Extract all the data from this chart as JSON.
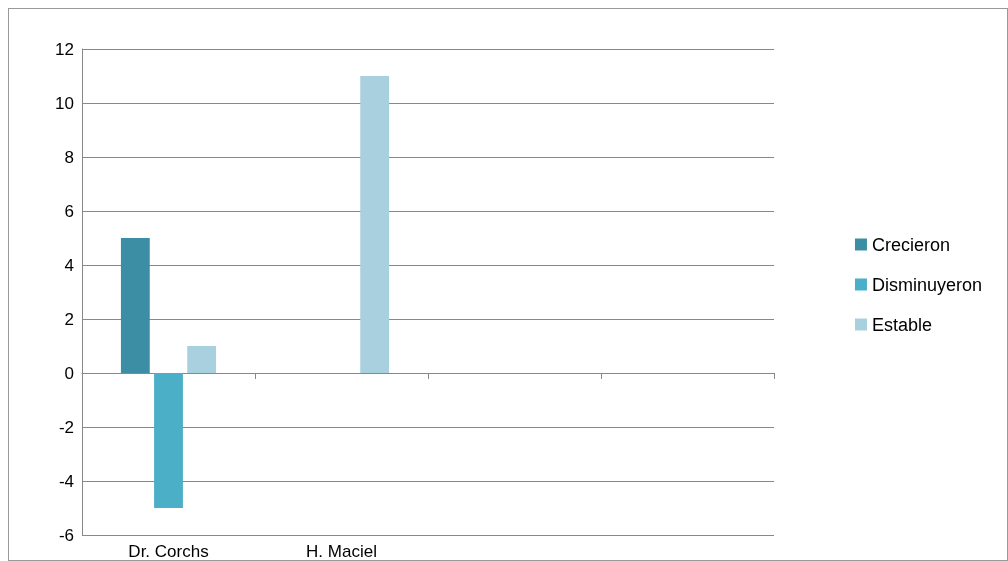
{
  "chart_data": {
    "type": "bar",
    "categories": [
      "Dr. Corchs",
      "H. Maciel",
      null,
      null
    ],
    "series": [
      {
        "name": "Crecieron",
        "color": "#3b8ea3",
        "values": [
          5,
          null,
          null,
          null
        ]
      },
      {
        "name": "Disminuyeron",
        "color": "#4bafc7",
        "values": [
          -5,
          null,
          null,
          null
        ]
      },
      {
        "name": "Estable",
        "color": "#a8d0de",
        "values": [
          1,
          11,
          null,
          null
        ]
      }
    ],
    "ylim": [
      -6,
      12
    ],
    "yticks": [
      -6,
      -4,
      -2,
      0,
      2,
      4,
      6,
      8,
      10,
      12
    ],
    "grid": "y",
    "legend": "right"
  }
}
